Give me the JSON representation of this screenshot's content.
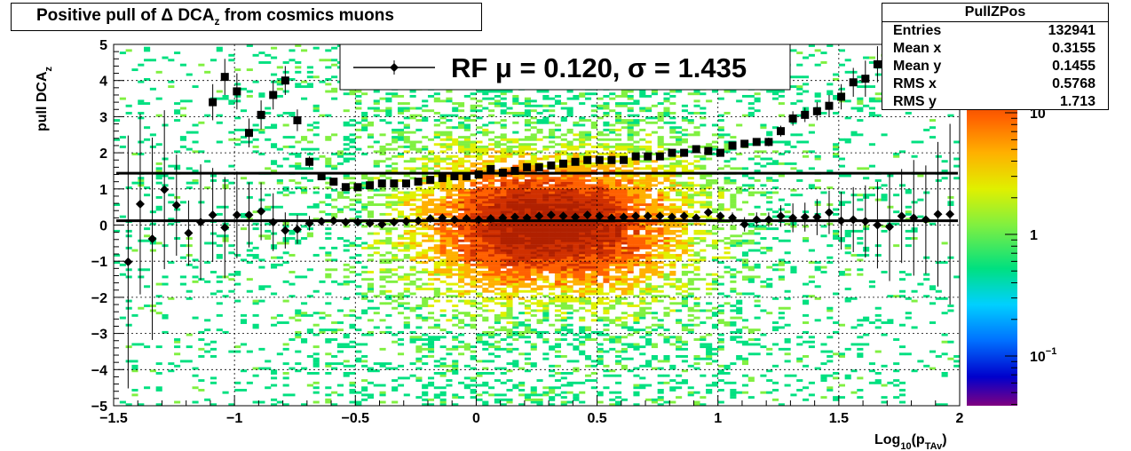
{
  "chart_data": {
    "type": "heatmap",
    "title": "Positive pull of Δ DCA",
    "title_sub": "z",
    "title_suffix": " from cosmics muons",
    "xlabel": "Log",
    "xlabel_sub1": "10",
    "xlabel_mid": "(p",
    "xlabel_sub2": "TAv",
    "xlabel_end": ")",
    "ylabel": "pull DCA",
    "ylabel_sub": "z",
    "xlim": [
      -1.5,
      2
    ],
    "ylim": [
      -5,
      5
    ],
    "x_ticks": [
      "−1.5",
      "−1",
      "−0.5",
      "0",
      "0.5",
      "1",
      "1.5",
      "2"
    ],
    "x_tick_values": [
      -1.5,
      -1,
      -0.5,
      0,
      0.5,
      1,
      1.5,
      2
    ],
    "y_ticks": [
      "5",
      "4",
      "3",
      "2",
      "1",
      "0",
      "−1",
      "−2",
      "−3",
      "−4",
      "−5"
    ],
    "y_tick_values": [
      5,
      4,
      3,
      2,
      1,
      0,
      -1,
      -2,
      -3,
      -4,
      -5
    ],
    "colorbar": {
      "scale": "log",
      "labels": [
        {
          "base": "10",
          "exp": "",
          "value": 10
        },
        {
          "base": "1",
          "exp": "",
          "value": 1
        },
        {
          "base": "10",
          "exp": "−1",
          "value": 0.1
        }
      ],
      "colors": [
        "#800080",
        "#0000cc",
        "#0070ff",
        "#00d0ff",
        "#00e080",
        "#80f040",
        "#e0f000",
        "#ffb000",
        "#ff6000",
        "#d03000",
        "#b02000"
      ]
    },
    "legend": {
      "entry_text": "RF μ =  0.120, σ =   1.435",
      "placement": "top-center"
    },
    "stats_box": {
      "title": "PullZPos",
      "rows": [
        {
          "label": "Entries",
          "value": "132941"
        },
        {
          "label": "Mean x",
          "value": "0.3155"
        },
        {
          "label": "Mean y",
          "value": "0.1455"
        },
        {
          "label": "RMS x",
          "value": "0.5768"
        },
        {
          "label": "RMS y",
          "value": "1.713"
        }
      ]
    },
    "fit_lines": [
      {
        "name": "mean",
        "y": 0.12
      },
      {
        "name": "sigma",
        "y": 1.435
      }
    ],
    "mean_points": {
      "x": [
        -1.44,
        -1.39,
        -1.34,
        -1.29,
        -1.24,
        -1.19,
        -1.14,
        -1.09,
        -1.04,
        -0.99,
        -0.94,
        -0.89,
        -0.84,
        -0.79,
        -0.74,
        -0.69,
        -0.64,
        -0.59,
        -0.54,
        -0.49,
        -0.44,
        -0.39,
        -0.34,
        -0.29,
        -0.24,
        -0.19,
        -0.14,
        -0.09,
        -0.04,
        0.01,
        0.06,
        0.11,
        0.16,
        0.21,
        0.26,
        0.31,
        0.36,
        0.41,
        0.46,
        0.51,
        0.56,
        0.61,
        0.66,
        0.71,
        0.76,
        0.81,
        0.86,
        0.91,
        0.96,
        1.01,
        1.06,
        1.11,
        1.16,
        1.21,
        1.26,
        1.31,
        1.36,
        1.41,
        1.46,
        1.51,
        1.56,
        1.61,
        1.66,
        1.71,
        1.76,
        1.81,
        1.86,
        1.91,
        1.96
      ],
      "y": [
        -1.02,
        0.58,
        -0.38,
        0.98,
        0.55,
        -0.22,
        0.08,
        0.28,
        -0.07,
        0.28,
        0.28,
        0.38,
        0.08,
        -0.15,
        -0.12,
        0.05,
        0.1,
        0.12,
        0.08,
        0.08,
        0.05,
        0.02,
        0.08,
        0.1,
        0.12,
        0.18,
        0.2,
        0.15,
        0.18,
        0.15,
        0.18,
        0.2,
        0.22,
        0.2,
        0.25,
        0.28,
        0.25,
        0.22,
        0.28,
        0.25,
        0.2,
        0.22,
        0.25,
        0.25,
        0.25,
        0.22,
        0.25,
        0.2,
        0.35,
        0.25,
        0.2,
        0.02,
        0.15,
        0.15,
        0.25,
        0.2,
        0.22,
        0.22,
        0.35,
        0.12,
        0.15,
        0.1,
        0.0,
        -0.05,
        0.25,
        0.2,
        0.15,
        0.3,
        0.3
      ],
      "err": [
        3.5,
        2.5,
        2.8,
        2.2,
        1.4,
        0.9,
        1.6,
        1.3,
        1.4,
        1.2,
        0.9,
        0.8,
        0.8,
        0.5,
        0.4,
        0.2,
        0.1,
        0.1,
        0.08,
        0.06,
        0.05,
        0.05,
        0.05,
        0.05,
        0.05,
        0.05,
        0.05,
        0.05,
        0.05,
        0.05,
        0.05,
        0.05,
        0.05,
        0.05,
        0.05,
        0.05,
        0.05,
        0.05,
        0.05,
        0.05,
        0.05,
        0.05,
        0.05,
        0.05,
        0.05,
        0.06,
        0.06,
        0.07,
        0.08,
        0.1,
        0.15,
        0.2,
        0.2,
        0.2,
        0.3,
        0.4,
        0.4,
        0.5,
        0.6,
        0.8,
        0.9,
        1.0,
        1.2,
        1.5,
        1.3,
        1.6,
        1.5,
        2.0,
        2.5
      ]
    },
    "sigma_points": {
      "x": [
        -1.09,
        -1.04,
        -0.99,
        -0.94,
        -0.89,
        -0.84,
        -0.79,
        -0.74,
        -0.69,
        -0.64,
        -0.59,
        -0.54,
        -0.49,
        -0.44,
        -0.39,
        -0.34,
        -0.29,
        -0.24,
        -0.19,
        -0.14,
        -0.09,
        -0.04,
        0.01,
        0.06,
        0.11,
        0.16,
        0.21,
        0.26,
        0.31,
        0.36,
        0.41,
        0.46,
        0.51,
        0.56,
        0.61,
        0.66,
        0.71,
        0.76,
        0.81,
        0.86,
        0.91,
        0.96,
        1.01,
        1.06,
        1.11,
        1.16,
        1.21,
        1.26,
        1.31,
        1.36,
        1.41,
        1.46,
        1.51,
        1.56,
        1.61,
        1.66
      ],
      "y": [
        3.4,
        4.1,
        3.7,
        2.55,
        3.05,
        3.6,
        4.0,
        2.9,
        1.75,
        1.35,
        1.2,
        1.05,
        1.05,
        1.1,
        1.15,
        1.15,
        1.15,
        1.2,
        1.25,
        1.3,
        1.35,
        1.35,
        1.4,
        1.55,
        1.45,
        1.5,
        1.6,
        1.6,
        1.65,
        1.7,
        1.75,
        1.8,
        1.8,
        1.8,
        1.8,
        1.9,
        1.9,
        1.9,
        2.0,
        2.0,
        2.1,
        2.05,
        2.0,
        2.2,
        2.25,
        2.3,
        2.3,
        2.6,
        2.95,
        3.05,
        3.15,
        3.3,
        3.55,
        3.95,
        4.05,
        4.45
      ],
      "err": [
        0.5,
        0.5,
        0.5,
        0.4,
        0.4,
        0.4,
        0.4,
        0.3,
        0.15,
        0.08,
        0.06,
        0.05,
        0.05,
        0.05,
        0.05,
        0.05,
        0.05,
        0.05,
        0.05,
        0.05,
        0.05,
        0.05,
        0.05,
        0.05,
        0.05,
        0.05,
        0.05,
        0.05,
        0.05,
        0.05,
        0.05,
        0.05,
        0.05,
        0.05,
        0.05,
        0.05,
        0.05,
        0.05,
        0.05,
        0.05,
        0.05,
        0.06,
        0.07,
        0.08,
        0.1,
        0.1,
        0.12,
        0.15,
        0.2,
        0.2,
        0.25,
        0.3,
        0.35,
        0.4,
        0.5,
        0.5
      ]
    },
    "overflow_point": {
      "x": 1.71,
      "y": 4.98
    }
  }
}
